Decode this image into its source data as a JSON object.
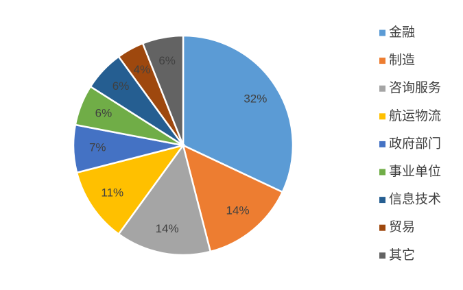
{
  "chart_data": {
    "type": "pie",
    "categories": [
      "金融",
      "制造",
      "咨询服务",
      "航运物流",
      "政府部门",
      "事业单位",
      "信息技术",
      "贸易",
      "其它"
    ],
    "values": [
      32,
      14,
      14,
      11,
      7,
      6,
      6,
      4,
      6
    ],
    "value_labels": [
      "32%",
      "14%",
      "14%",
      "11%",
      "7%",
      "6%",
      "6%",
      "4%",
      "6%"
    ],
    "colors": [
      "#5b9bd5",
      "#ed7d31",
      "#a5a5a5",
      "#ffc000",
      "#4472c4",
      "#70ad47",
      "#255e91",
      "#9e480e",
      "#636363"
    ],
    "legend": "right"
  }
}
